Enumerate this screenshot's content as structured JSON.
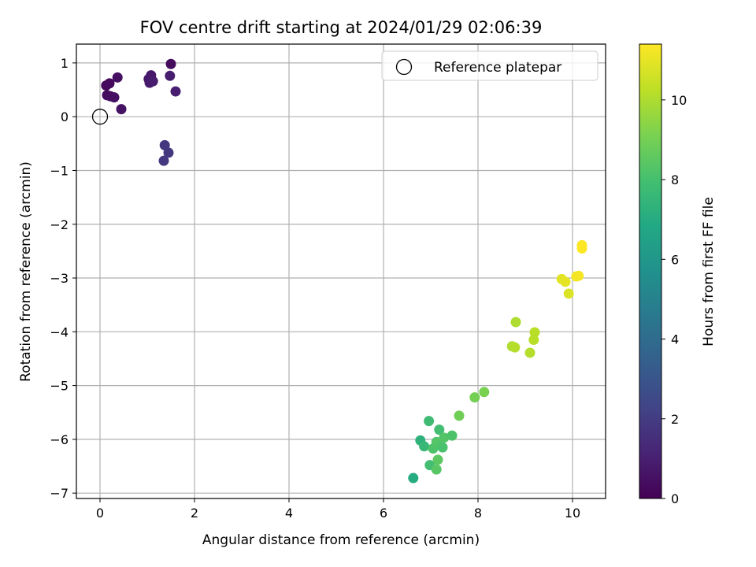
{
  "chart_data": {
    "type": "scatter",
    "title": "FOV centre drift starting at 2024/01/29 02:06:39",
    "xlabel": "Angular distance from reference (arcmin)",
    "ylabel": "Rotation from reference (arcmin)",
    "xlim": [
      -0.5,
      10.7
    ],
    "ylim": [
      -7.1,
      1.35
    ],
    "xticks": [
      0,
      2,
      4,
      6,
      8,
      10
    ],
    "yticks": [
      1,
      0,
      -1,
      -2,
      -3,
      -4,
      -5,
      -6,
      -7
    ],
    "grid": true,
    "legend": {
      "placement": "top-right",
      "entries": [
        "Reference platepar"
      ]
    },
    "reference_point": {
      "name": "Reference platepar",
      "x": 0,
      "y": 0,
      "marker": "hollow-circle"
    },
    "colorbar": {
      "label": "Hours from first FF file",
      "range": [
        0,
        11.4
      ],
      "ticks": [
        0,
        2,
        4,
        6,
        8,
        10
      ],
      "colormap": "viridis"
    },
    "points": [
      {
        "x": 0.13,
        "y": 0.58,
        "c": 0.25
      },
      {
        "x": 0.2,
        "y": 0.62,
        "c": 0.3
      },
      {
        "x": 0.37,
        "y": 0.73,
        "c": 0.5
      },
      {
        "x": 0.15,
        "y": 0.4,
        "c": 0.35
      },
      {
        "x": 0.22,
        "y": 0.38,
        "c": 0.4
      },
      {
        "x": 0.3,
        "y": 0.36,
        "c": 0.45
      },
      {
        "x": 0.45,
        "y": 0.14,
        "c": 0.55
      },
      {
        "x": 1.03,
        "y": 0.7,
        "c": 0.7
      },
      {
        "x": 1.08,
        "y": 0.77,
        "c": 0.75
      },
      {
        "x": 1.05,
        "y": 0.63,
        "c": 0.8
      },
      {
        "x": 1.12,
        "y": 0.66,
        "c": 0.85
      },
      {
        "x": 1.5,
        "y": 0.98,
        "c": 0.35
      },
      {
        "x": 1.48,
        "y": 0.76,
        "c": 0.9
      },
      {
        "x": 1.6,
        "y": 0.47,
        "c": 0.95
      },
      {
        "x": 1.37,
        "y": -0.53,
        "c": 1.8
      },
      {
        "x": 1.45,
        "y": -0.67,
        "c": 1.9
      },
      {
        "x": 1.35,
        "y": -0.82,
        "c": 1.85
      },
      {
        "x": 6.63,
        "y": -6.72,
        "c": 7.0
      },
      {
        "x": 6.78,
        "y": -6.02,
        "c": 7.3
      },
      {
        "x": 6.86,
        "y": -6.13,
        "c": 7.6
      },
      {
        "x": 6.96,
        "y": -5.66,
        "c": 7.8
      },
      {
        "x": 6.98,
        "y": -6.48,
        "c": 7.9
      },
      {
        "x": 7.05,
        "y": -6.17,
        "c": 8.2
      },
      {
        "x": 7.12,
        "y": -6.05,
        "c": 8.3
      },
      {
        "x": 7.12,
        "y": -6.56,
        "c": 8.4
      },
      {
        "x": 7.15,
        "y": -6.38,
        "c": 8.5
      },
      {
        "x": 7.18,
        "y": -5.82,
        "c": 7.9
      },
      {
        "x": 7.25,
        "y": -6.15,
        "c": 8.1
      },
      {
        "x": 7.28,
        "y": -5.97,
        "c": 8.3
      },
      {
        "x": 7.45,
        "y": -5.93,
        "c": 8.2
      },
      {
        "x": 7.6,
        "y": -5.56,
        "c": 8.9
      },
      {
        "x": 7.93,
        "y": -5.22,
        "c": 9.0
      },
      {
        "x": 8.13,
        "y": -5.12,
        "c": 9.1
      },
      {
        "x": 8.72,
        "y": -4.27,
        "c": 10.0
      },
      {
        "x": 8.78,
        "y": -4.29,
        "c": 10.1
      },
      {
        "x": 8.8,
        "y": -3.82,
        "c": 10.0
      },
      {
        "x": 9.1,
        "y": -4.39,
        "c": 10.1
      },
      {
        "x": 9.18,
        "y": -4.15,
        "c": 10.2
      },
      {
        "x": 9.2,
        "y": -4.01,
        "c": 10.2
      },
      {
        "x": 9.77,
        "y": -3.02,
        "c": 10.9
      },
      {
        "x": 9.85,
        "y": -3.07,
        "c": 10.95
      },
      {
        "x": 9.92,
        "y": -3.29,
        "c": 10.8
      },
      {
        "x": 10.08,
        "y": -2.97,
        "c": 11.2
      },
      {
        "x": 10.13,
        "y": -2.96,
        "c": 11.25
      },
      {
        "x": 10.2,
        "y": -2.39,
        "c": 11.35
      },
      {
        "x": 10.2,
        "y": -2.45,
        "c": 11.4
      }
    ]
  }
}
